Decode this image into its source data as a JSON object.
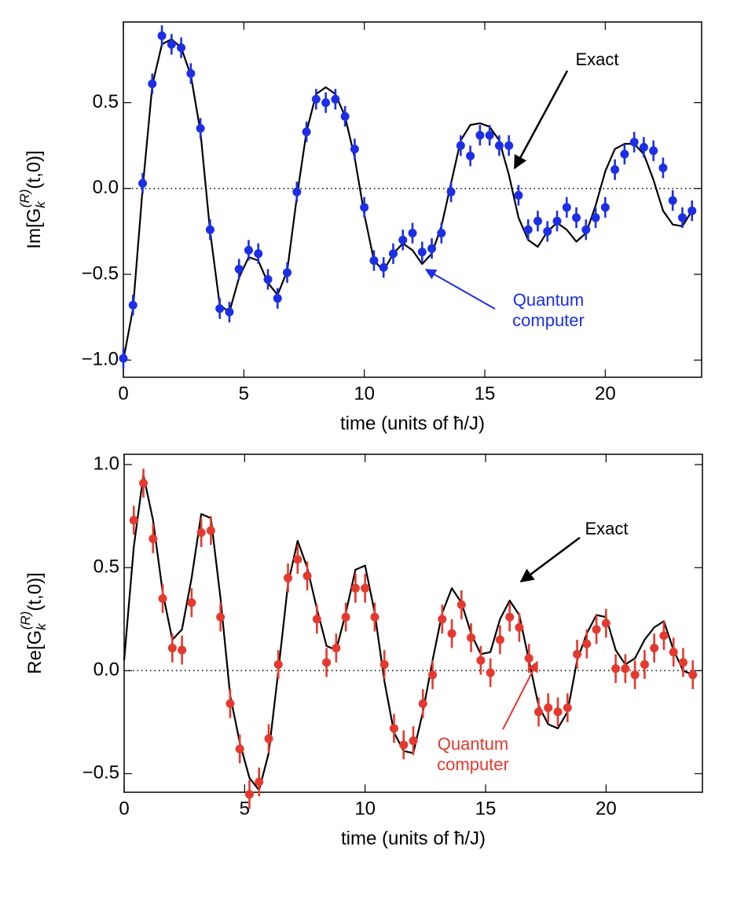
{
  "chart_data": [
    {
      "type": "scatter",
      "xlabel": "time (units of ħ/J)",
      "ylabel": {
        "prefix": "Im[G",
        "sub": "k",
        "sup": "(R)",
        "suffix": "(t,0)]"
      },
      "x": [
        0,
        0.4,
        0.8,
        1.2,
        1.6,
        2,
        2.4,
        2.8,
        3.2,
        3.6,
        4,
        4.4,
        4.8,
        5.2,
        5.6,
        6,
        6.4,
        6.8,
        7.2,
        7.6,
        8,
        8.4,
        8.8,
        9.2,
        9.6,
        10,
        10.4,
        10.8,
        11.2,
        11.6,
        12,
        12.4,
        12.8,
        13.2,
        13.6,
        14,
        14.4,
        14.8,
        15.2,
        15.6,
        16,
        16.4,
        16.8,
        17.2,
        17.6,
        18,
        18.4,
        18.8,
        19.2,
        19.6,
        20,
        20.4,
        20.8,
        21.2,
        21.6,
        22,
        22.4,
        22.8,
        23.2,
        23.6
      ],
      "series": [
        {
          "name": "Exact",
          "style": "line",
          "color": "#000000",
          "values": [
            -1.0,
            -0.7,
            0.0,
            0.6,
            0.84,
            0.87,
            0.82,
            0.66,
            0.33,
            -0.25,
            -0.68,
            -0.72,
            -0.52,
            -0.4,
            -0.42,
            -0.55,
            -0.62,
            -0.48,
            -0.05,
            0.33,
            0.55,
            0.59,
            0.55,
            0.42,
            0.18,
            -0.15,
            -0.42,
            -0.48,
            -0.38,
            -0.32,
            -0.36,
            -0.44,
            -0.38,
            -0.22,
            0.03,
            0.28,
            0.37,
            0.38,
            0.36,
            0.28,
            0.08,
            -0.17,
            -0.3,
            -0.34,
            -0.25,
            -0.2,
            -0.24,
            -0.31,
            -0.26,
            -0.1,
            0.1,
            0.23,
            0.26,
            0.26,
            0.2,
            0.05,
            -0.13,
            -0.21,
            -0.22,
            -0.13
          ]
        },
        {
          "name": [
            "Quantum",
            "computer"
          ],
          "style": "points",
          "color": "#1c2ee6",
          "error": 0.06,
          "values": [
            -0.99,
            -0.68,
            0.03,
            0.61,
            0.89,
            0.84,
            0.82,
            0.67,
            0.35,
            -0.24,
            -0.7,
            -0.72,
            -0.47,
            -0.36,
            -0.38,
            -0.53,
            -0.64,
            -0.49,
            -0.02,
            0.33,
            0.52,
            0.5,
            0.52,
            0.42,
            0.23,
            -0.11,
            -0.42,
            -0.46,
            -0.38,
            -0.3,
            -0.26,
            -0.37,
            -0.35,
            -0.26,
            -0.02,
            0.25,
            0.19,
            0.31,
            0.31,
            0.25,
            0.25,
            -0.04,
            -0.24,
            -0.19,
            -0.25,
            -0.19,
            -0.11,
            -0.17,
            -0.24,
            -0.17,
            -0.11,
            0.11,
            0.2,
            0.27,
            0.24,
            0.22,
            0.12,
            -0.07,
            -0.17,
            -0.13
          ]
        }
      ],
      "xlim": [
        0,
        24
      ],
      "xticks": [
        0,
        5,
        10,
        15,
        20
      ],
      "ylim": [
        -1.1,
        0.97
      ],
      "yticks": [
        {
          "value": -1.0,
          "label": "−1.0"
        },
        {
          "value": -0.5,
          "label": "−0.5"
        },
        {
          "value": 0,
          "label": "0.0"
        },
        {
          "value": 0.5,
          "label": "0.5"
        }
      ],
      "zero_line": true
    },
    {
      "type": "scatter",
      "xlabel": "time (units of ħ/J)",
      "ylabel": {
        "prefix": "Re[G",
        "sub": "k",
        "sup": "(R)",
        "suffix": "(t,0)]"
      },
      "x": [
        0,
        0.4,
        0.8,
        1.2,
        1.6,
        2,
        2.4,
        2.8,
        3.2,
        3.6,
        4,
        4.4,
        4.8,
        5.2,
        5.6,
        6,
        6.4,
        6.8,
        7.2,
        7.6,
        8,
        8.4,
        8.8,
        9.2,
        9.6,
        10,
        10.4,
        10.8,
        11.2,
        11.6,
        12,
        12.4,
        12.8,
        13.2,
        13.6,
        14,
        14.4,
        14.8,
        15.2,
        15.6,
        16,
        16.4,
        16.8,
        17.2,
        17.6,
        18,
        18.4,
        18.8,
        19.2,
        19.6,
        20,
        20.4,
        20.8,
        21.2,
        21.6,
        22,
        22.4,
        22.8,
        23.2,
        23.6
      ],
      "series": [
        {
          "name": "Exact",
          "style": "line",
          "color": "#000000",
          "values": [
            0.05,
            0.6,
            0.95,
            0.73,
            0.38,
            0.15,
            0.2,
            0.45,
            0.76,
            0.74,
            0.35,
            -0.12,
            -0.35,
            -0.52,
            -0.58,
            -0.4,
            0.0,
            0.42,
            0.63,
            0.5,
            0.3,
            0.12,
            0.1,
            0.28,
            0.49,
            0.51,
            0.28,
            -0.05,
            -0.3,
            -0.39,
            -0.4,
            -0.2,
            0.05,
            0.28,
            0.4,
            0.33,
            0.18,
            0.08,
            0.09,
            0.25,
            0.34,
            0.27,
            0.05,
            -0.17,
            -0.26,
            -0.28,
            -0.2,
            0.05,
            0.18,
            0.27,
            0.26,
            0.1,
            0.03,
            0.06,
            0.15,
            0.21,
            0.24,
            0.1,
            0.0,
            -0.02
          ]
        },
        {
          "name": [
            "Quantum",
            "computer"
          ],
          "style": "points",
          "color": "#e5392e",
          "error": 0.07,
          "values": [
            null,
            0.73,
            0.91,
            0.64,
            0.35,
            0.11,
            0.1,
            0.33,
            0.67,
            0.68,
            0.26,
            -0.16,
            -0.38,
            -0.6,
            -0.54,
            -0.33,
            0.03,
            0.45,
            0.54,
            0.46,
            0.25,
            0.04,
            0.11,
            0.26,
            0.4,
            0.4,
            0.26,
            0.03,
            -0.28,
            -0.36,
            -0.34,
            -0.16,
            -0.02,
            0.25,
            0.18,
            0.32,
            0.16,
            0.05,
            -0.01,
            0.15,
            0.26,
            0.21,
            0.06,
            -0.2,
            -0.18,
            -0.2,
            -0.18,
            0.08,
            0.13,
            0.2,
            0.23,
            0.01,
            0.01,
            -0.02,
            0.03,
            0.11,
            0.17,
            0.09,
            0.04,
            -0.02
          ]
        }
      ],
      "xlim": [
        0,
        24
      ],
      "xticks": [
        0,
        5,
        10,
        15,
        20
      ],
      "ylim": [
        -0.59,
        1.05
      ],
      "yticks": [
        {
          "value": -0.5,
          "label": "−0.5"
        },
        {
          "value": 0,
          "label": "0.0"
        },
        {
          "value": 0.5,
          "label": "0.5"
        },
        {
          "value": 1.0,
          "label": "1.0"
        }
      ],
      "zero_line": true
    }
  ]
}
